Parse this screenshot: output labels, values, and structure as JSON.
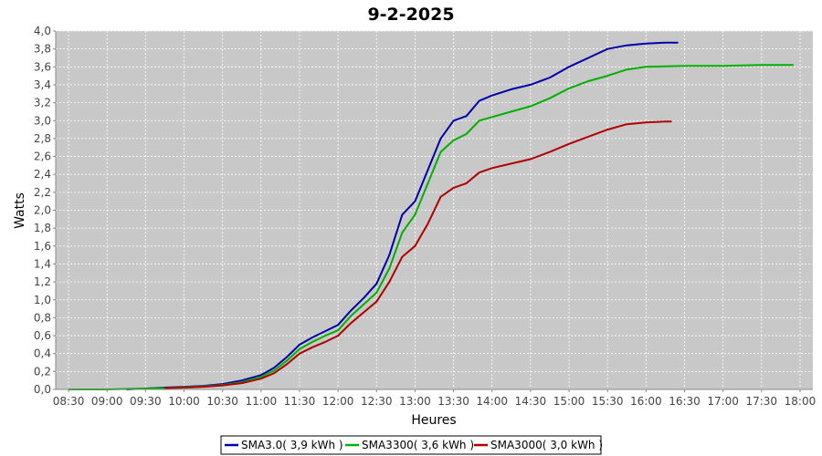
{
  "chart_data": {
    "type": "line",
    "title": "9-2-2025",
    "xlabel": "Heures",
    "ylabel": "Watts",
    "xlim": [
      "08:20",
      "18:10"
    ],
    "ylim": [
      0,
      4.0
    ],
    "x_ticks": [
      "08:30",
      "09:00",
      "09:30",
      "10:00",
      "10:30",
      "11:00",
      "11:30",
      "12:00",
      "12:30",
      "13:00",
      "13:30",
      "14:00",
      "14:30",
      "15:00",
      "15:30",
      "16:00",
      "16:30",
      "17:00",
      "17:30",
      "18:00"
    ],
    "y_ticks": [
      "0,0",
      "0,2",
      "0,4",
      "0,6",
      "0,8",
      "1,0",
      "1,2",
      "1,4",
      "1,6",
      "1,8",
      "2,0",
      "2,2",
      "2,4",
      "2,6",
      "2,8",
      "3,0",
      "3,2",
      "3,4",
      "3,6",
      "3,8",
      "4,0"
    ],
    "grid": true,
    "legend_position": "bottom",
    "background": "#c8c8c8",
    "series": [
      {
        "name": "SMA3.0( 3,9 kWh )",
        "color": "#0000aa",
        "points": [
          [
            "09:15",
            0.0
          ],
          [
            "09:30",
            0.01
          ],
          [
            "09:45",
            0.02
          ],
          [
            "10:00",
            0.03
          ],
          [
            "10:15",
            0.04
          ],
          [
            "10:30",
            0.06
          ],
          [
            "10:45",
            0.1
          ],
          [
            "11:00",
            0.16
          ],
          [
            "11:10",
            0.24
          ],
          [
            "11:20",
            0.36
          ],
          [
            "11:30",
            0.5
          ],
          [
            "11:40",
            0.58
          ],
          [
            "11:50",
            0.65
          ],
          [
            "12:00",
            0.72
          ],
          [
            "12:10",
            0.88
          ],
          [
            "12:20",
            1.02
          ],
          [
            "12:30",
            1.18
          ],
          [
            "12:40",
            1.5
          ],
          [
            "12:50",
            1.95
          ],
          [
            "13:00",
            2.1
          ],
          [
            "13:10",
            2.45
          ],
          [
            "13:20",
            2.8
          ],
          [
            "13:30",
            3.0
          ],
          [
            "13:40",
            3.05
          ],
          [
            "13:50",
            3.22
          ],
          [
            "14:00",
            3.28
          ],
          [
            "14:15",
            3.35
          ],
          [
            "14:30",
            3.4
          ],
          [
            "14:45",
            3.48
          ],
          [
            "15:00",
            3.6
          ],
          [
            "15:15",
            3.7
          ],
          [
            "15:30",
            3.8
          ],
          [
            "15:45",
            3.84
          ],
          [
            "16:00",
            3.86
          ],
          [
            "16:15",
            3.87
          ],
          [
            "16:25",
            3.87
          ]
        ]
      },
      {
        "name": "SMA3300( 3,6 kWh )",
        "color": "#00b000",
        "points": [
          [
            "08:30",
            0.0
          ],
          [
            "09:00",
            0.0
          ],
          [
            "09:30",
            0.01
          ],
          [
            "09:45",
            0.015
          ],
          [
            "10:00",
            0.025
          ],
          [
            "10:15",
            0.035
          ],
          [
            "10:30",
            0.05
          ],
          [
            "10:45",
            0.08
          ],
          [
            "11:00",
            0.14
          ],
          [
            "11:10",
            0.21
          ],
          [
            "11:20",
            0.32
          ],
          [
            "11:30",
            0.45
          ],
          [
            "11:40",
            0.53
          ],
          [
            "11:50",
            0.6
          ],
          [
            "12:00",
            0.66
          ],
          [
            "12:10",
            0.82
          ],
          [
            "12:20",
            0.95
          ],
          [
            "12:30",
            1.08
          ],
          [
            "12:40",
            1.35
          ],
          [
            "12:50",
            1.75
          ],
          [
            "13:00",
            1.95
          ],
          [
            "13:10",
            2.3
          ],
          [
            "13:20",
            2.65
          ],
          [
            "13:30",
            2.78
          ],
          [
            "13:40",
            2.85
          ],
          [
            "13:50",
            3.0
          ],
          [
            "14:00",
            3.04
          ],
          [
            "14:15",
            3.1
          ],
          [
            "14:30",
            3.16
          ],
          [
            "14:45",
            3.25
          ],
          [
            "15:00",
            3.36
          ],
          [
            "15:15",
            3.44
          ],
          [
            "15:30",
            3.5
          ],
          [
            "15:45",
            3.57
          ],
          [
            "16:00",
            3.6
          ],
          [
            "16:30",
            3.61
          ],
          [
            "17:00",
            3.61
          ],
          [
            "17:30",
            3.62
          ],
          [
            "17:55",
            3.62
          ]
        ]
      },
      {
        "name": "SMA3000( 3,0 kWh )",
        "color": "#b00000",
        "points": [
          [
            "09:45",
            0.015
          ],
          [
            "10:00",
            0.02
          ],
          [
            "10:15",
            0.03
          ],
          [
            "10:30",
            0.045
          ],
          [
            "10:45",
            0.07
          ],
          [
            "11:00",
            0.12
          ],
          [
            "11:10",
            0.18
          ],
          [
            "11:20",
            0.28
          ],
          [
            "11:30",
            0.4
          ],
          [
            "11:40",
            0.47
          ],
          [
            "11:50",
            0.53
          ],
          [
            "12:00",
            0.6
          ],
          [
            "12:10",
            0.74
          ],
          [
            "12:20",
            0.86
          ],
          [
            "12:30",
            0.98
          ],
          [
            "12:40",
            1.2
          ],
          [
            "12:50",
            1.48
          ],
          [
            "13:00",
            1.6
          ],
          [
            "13:10",
            1.85
          ],
          [
            "13:20",
            2.15
          ],
          [
            "13:30",
            2.25
          ],
          [
            "13:40",
            2.3
          ],
          [
            "13:50",
            2.42
          ],
          [
            "14:00",
            2.47
          ],
          [
            "14:15",
            2.52
          ],
          [
            "14:30",
            2.57
          ],
          [
            "14:45",
            2.65
          ],
          [
            "15:00",
            2.74
          ],
          [
            "15:15",
            2.82
          ],
          [
            "15:30",
            2.9
          ],
          [
            "15:45",
            2.96
          ],
          [
            "16:00",
            2.98
          ],
          [
            "16:15",
            2.99
          ],
          [
            "16:20",
            2.99
          ]
        ]
      }
    ]
  }
}
